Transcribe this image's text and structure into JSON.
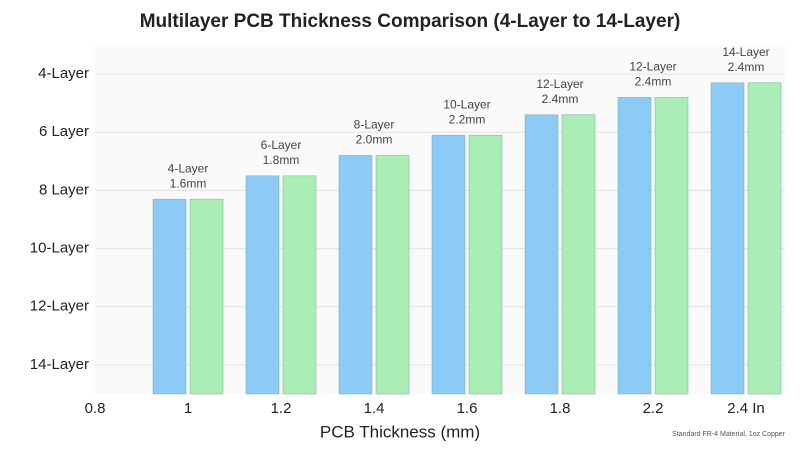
{
  "chart_data": {
    "type": "bar",
    "title": "Multilayer PCB Thickness Comparison (4-Layer to 14-Layer)",
    "x_label": "PCB Thickness (mm)",
    "footnote": "Standard FR-4 Material, 1oz Copper",
    "categories": [
      "0.8",
      "1",
      "1.2",
      "1.4",
      "1.6",
      "1.8",
      "2.2",
      "2.4 In"
    ],
    "series": [
      {
        "color": "#8ccbf5",
        "values": [
          null,
          8.3,
          7.5,
          6.8,
          6.1,
          5.4,
          4.8,
          4.3
        ]
      },
      {
        "color": "#aaeeb6",
        "values": [
          null,
          8.3,
          7.5,
          6.8,
          6.1,
          5.4,
          4.8,
          4.3
        ]
      }
    ],
    "annotations": [
      null,
      [
        "4-Layer",
        "1.6mm"
      ],
      [
        "6-Layer",
        "1.8mm"
      ],
      [
        "8-Layer",
        "2.0mm"
      ],
      [
        "10-Layer",
        "2.2mm"
      ],
      [
        "12-Layer",
        "2.4mm"
      ],
      [
        "12-Layer",
        "2.4mm"
      ],
      [
        "14-Layer",
        "2.4mm"
      ]
    ],
    "ylim": [
      15,
      3
    ],
    "yticks": [
      {
        "value": 4,
        "label": "4-Layer"
      },
      {
        "value": 6,
        "label": "6 Layer"
      },
      {
        "value": 8,
        "label": "8 Layer"
      },
      {
        "value": 10,
        "label": "10-Layer"
      },
      {
        "value": 12,
        "label": "12-Layer"
      },
      {
        "value": 14,
        "label": "14-Layer"
      }
    ],
    "grid": true
  }
}
